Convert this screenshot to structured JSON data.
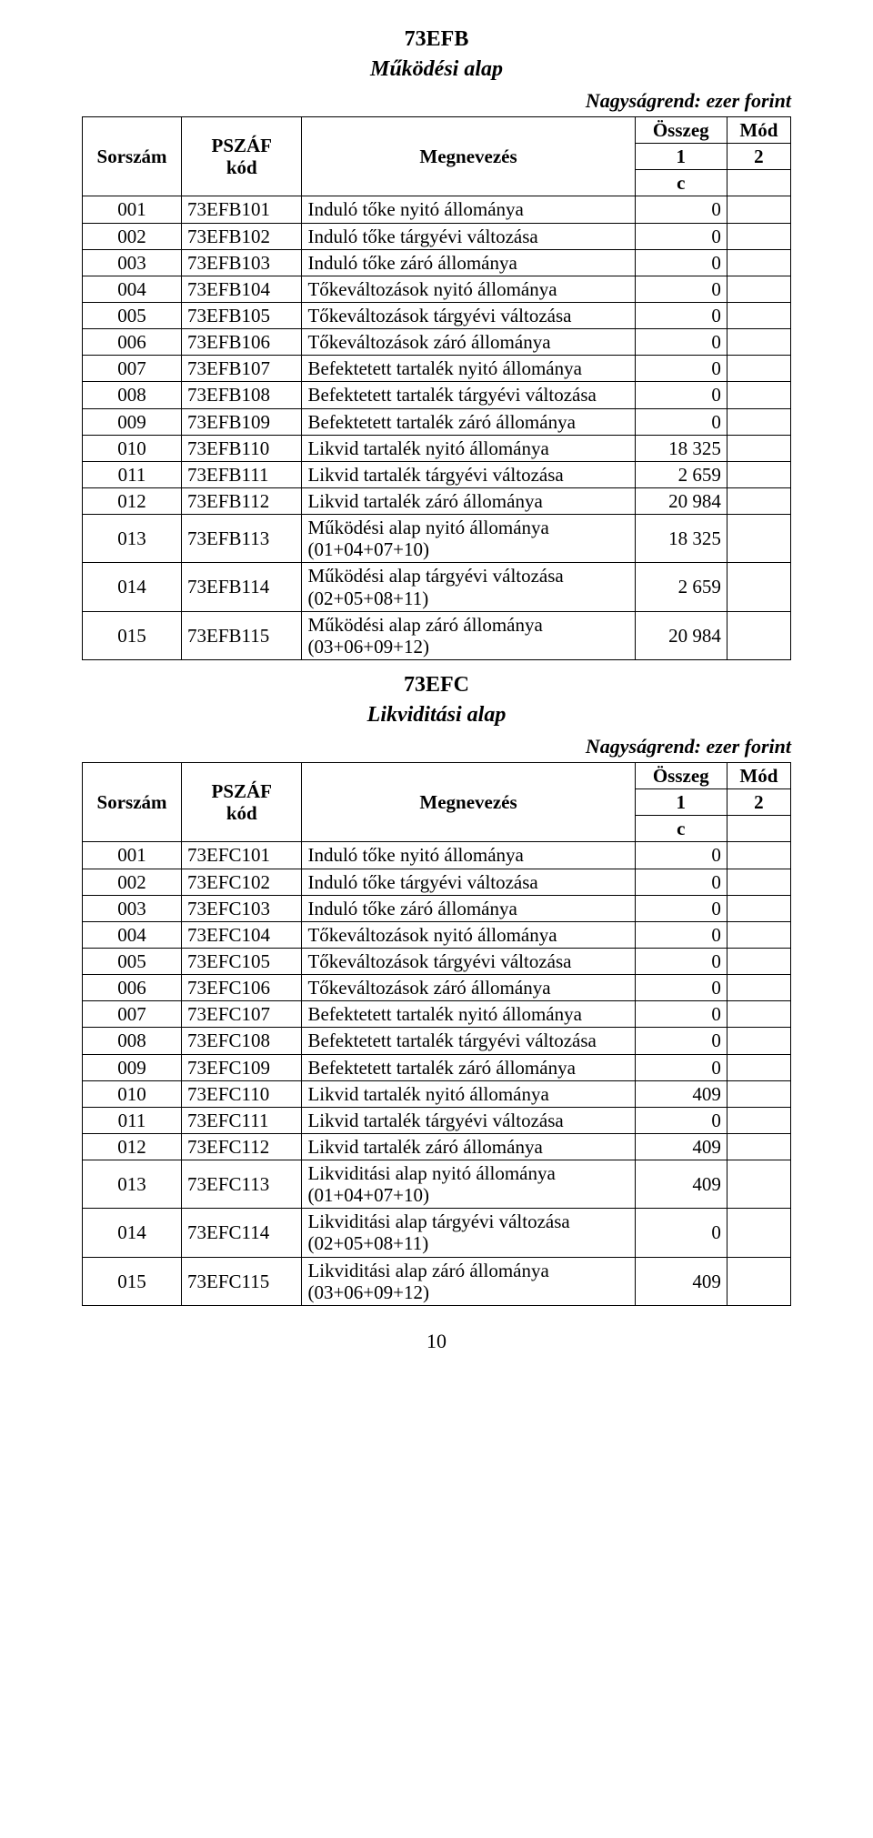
{
  "page_number": "10",
  "unit_line": "Nagyságrend: ezer forint",
  "header": {
    "sorszam": "Sorszám",
    "pszaf": "PSZÁF kód",
    "megnev": "Megnevezés",
    "osszeg": "Összeg",
    "mod": "Mód",
    "one": "1",
    "two": "2",
    "c": "c"
  },
  "tables": [
    {
      "code": "73EFB",
      "title": "Működési alap",
      "rows": [
        {
          "sor": "001",
          "kod": "73EFB101",
          "meg": "Induló tőke nyitó állománya",
          "val": "0",
          "mod": ""
        },
        {
          "sor": "002",
          "kod": "73EFB102",
          "meg": "Induló tőke tárgyévi változása",
          "val": "0",
          "mod": ""
        },
        {
          "sor": "003",
          "kod": "73EFB103",
          "meg": "Induló tőke záró állománya",
          "val": "0",
          "mod": ""
        },
        {
          "sor": "004",
          "kod": "73EFB104",
          "meg": "Tőkeváltozások nyitó állománya",
          "val": "0",
          "mod": ""
        },
        {
          "sor": "005",
          "kod": "73EFB105",
          "meg": "Tőkeváltozások tárgyévi változása",
          "val": "0",
          "mod": ""
        },
        {
          "sor": "006",
          "kod": "73EFB106",
          "meg": "Tőkeváltozások záró állománya",
          "val": "0",
          "mod": ""
        },
        {
          "sor": "007",
          "kod": "73EFB107",
          "meg": "Befektetett tartalék nyitó állománya",
          "val": "0",
          "mod": ""
        },
        {
          "sor": "008",
          "kod": "73EFB108",
          "meg": "Befektetett tartalék tárgyévi változása",
          "val": "0",
          "mod": ""
        },
        {
          "sor": "009",
          "kod": "73EFB109",
          "meg": "Befektetett tartalék záró állománya",
          "val": "0",
          "mod": ""
        },
        {
          "sor": "010",
          "kod": "73EFB110",
          "meg": "Likvid tartalék nyitó állománya",
          "val": "18 325",
          "mod": ""
        },
        {
          "sor": "011",
          "kod": "73EFB111",
          "meg": "Likvid tartalék tárgyévi változása",
          "val": "2 659",
          "mod": ""
        },
        {
          "sor": "012",
          "kod": "73EFB112",
          "meg": "Likvid tartalék záró állománya",
          "val": "20 984",
          "mod": ""
        },
        {
          "sor": "013",
          "kod": "73EFB113",
          "meg": "Működési alap nyitó állománya (01+04+07+10)",
          "val": "18 325",
          "mod": ""
        },
        {
          "sor": "014",
          "kod": "73EFB114",
          "meg": "Működési alap tárgyévi változása (02+05+08+11)",
          "val": "2 659",
          "mod": ""
        },
        {
          "sor": "015",
          "kod": "73EFB115",
          "meg": "Működési alap záró állománya (03+06+09+12)",
          "val": "20 984",
          "mod": ""
        }
      ]
    },
    {
      "code": "73EFC",
      "title": "Likviditási alap",
      "rows": [
        {
          "sor": "001",
          "kod": "73EFC101",
          "meg": "Induló tőke nyitó állománya",
          "val": "0",
          "mod": ""
        },
        {
          "sor": "002",
          "kod": "73EFC102",
          "meg": "Induló tőke tárgyévi változása",
          "val": "0",
          "mod": ""
        },
        {
          "sor": "003",
          "kod": "73EFC103",
          "meg": "Induló tőke záró állománya",
          "val": "0",
          "mod": ""
        },
        {
          "sor": "004",
          "kod": "73EFC104",
          "meg": "Tőkeváltozások nyitó állománya",
          "val": "0",
          "mod": ""
        },
        {
          "sor": "005",
          "kod": "73EFC105",
          "meg": "Tőkeváltozások tárgyévi változása",
          "val": "0",
          "mod": ""
        },
        {
          "sor": "006",
          "kod": "73EFC106",
          "meg": "Tőkeváltozások záró állománya",
          "val": "0",
          "mod": ""
        },
        {
          "sor": "007",
          "kod": "73EFC107",
          "meg": "Befektetett tartalék nyitó állománya",
          "val": "0",
          "mod": ""
        },
        {
          "sor": "008",
          "kod": "73EFC108",
          "meg": "Befektetett tartalék tárgyévi változása",
          "val": "0",
          "mod": ""
        },
        {
          "sor": "009",
          "kod": "73EFC109",
          "meg": "Befektetett tartalék záró állománya",
          "val": "0",
          "mod": ""
        },
        {
          "sor": "010",
          "kod": "73EFC110",
          "meg": "Likvid tartalék nyitó állománya",
          "val": "409",
          "mod": ""
        },
        {
          "sor": "011",
          "kod": "73EFC111",
          "meg": "Likvid tartalék tárgyévi változása",
          "val": "0",
          "mod": ""
        },
        {
          "sor": "012",
          "kod": "73EFC112",
          "meg": "Likvid tartalék záró állománya",
          "val": "409",
          "mod": ""
        },
        {
          "sor": "013",
          "kod": "73EFC113",
          "meg": "Likviditási alap nyitó állománya (01+04+07+10)",
          "val": "409",
          "mod": ""
        },
        {
          "sor": "014",
          "kod": "73EFC114",
          "meg": "Likviditási alap tárgyévi változása (02+05+08+11)",
          "val": "0",
          "mod": ""
        },
        {
          "sor": "015",
          "kod": "73EFC115",
          "meg": "Likviditási alap záró állománya (03+06+09+12)",
          "val": "409",
          "mod": ""
        }
      ]
    }
  ]
}
